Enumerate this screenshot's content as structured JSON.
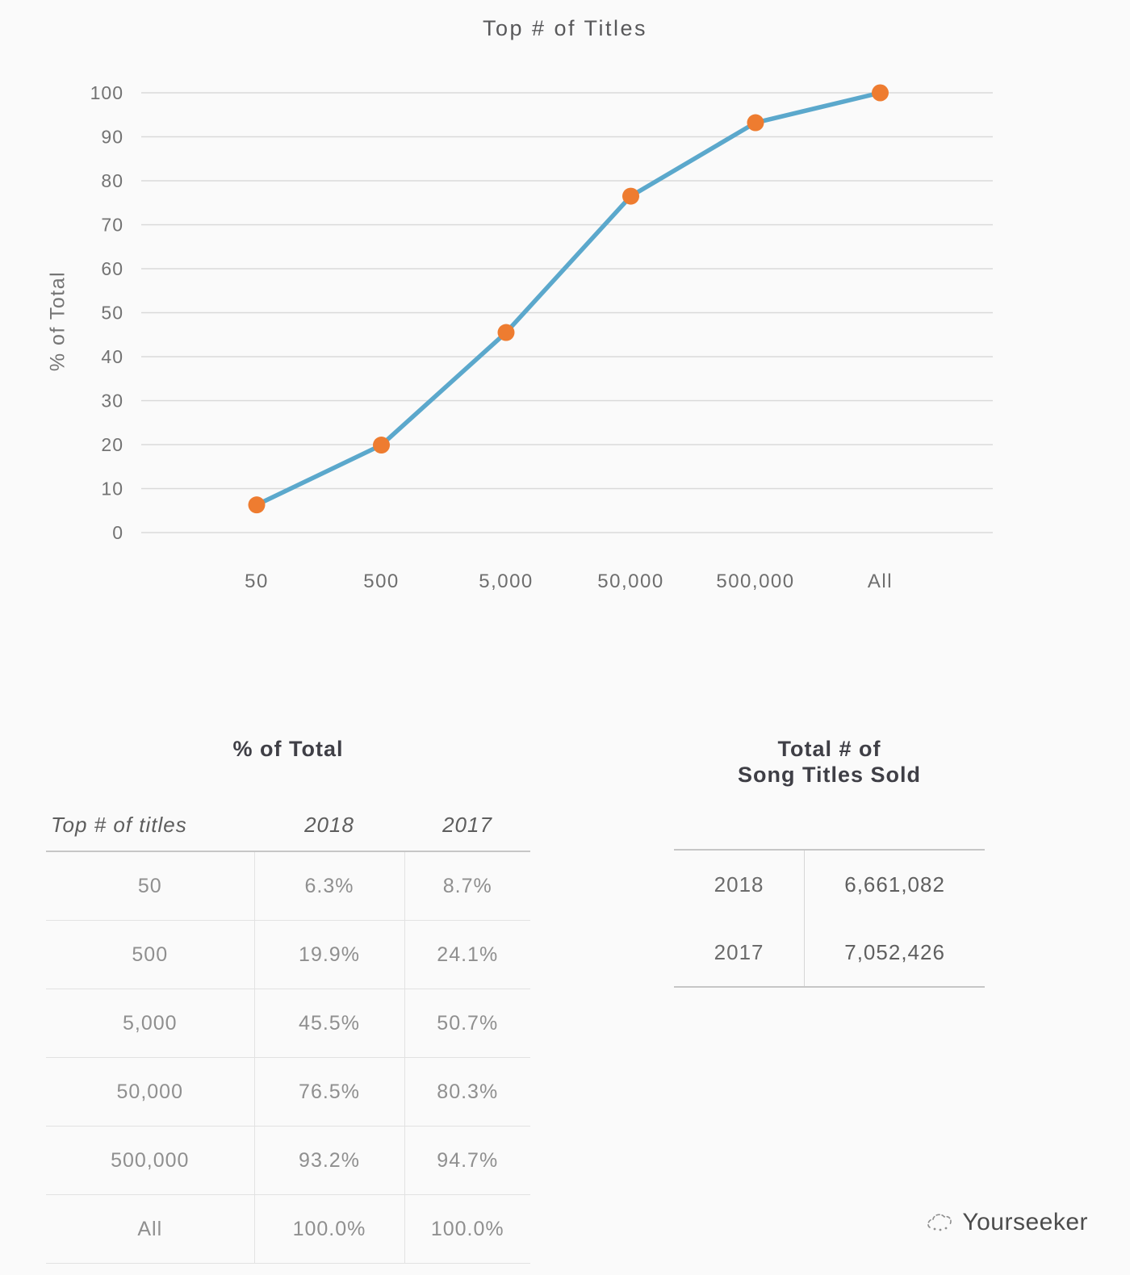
{
  "chart_data": {
    "type": "line",
    "title": "Top # of Titles",
    "ylabel": "% of Total",
    "xlabel": "",
    "categories": [
      "50",
      "500",
      "5,000",
      "50,000",
      "500,000",
      "All"
    ],
    "series": [
      {
        "name": "2018",
        "values": [
          6.3,
          19.9,
          45.5,
          76.5,
          93.2,
          100.0
        ]
      }
    ],
    "ylim": [
      0,
      100
    ],
    "yticks": [
      0,
      10,
      20,
      30,
      40,
      50,
      60,
      70,
      80,
      90,
      100
    ],
    "grid": true,
    "legend": "none",
    "line_color": "#5BA8CC",
    "marker_color": "#EE7C30"
  },
  "left_table": {
    "title": "% of Total",
    "columns": [
      "Top # of titles",
      "2018",
      "2017"
    ],
    "rows": [
      [
        "50",
        "6.3%",
        "8.7%"
      ],
      [
        "500",
        "19.9%",
        "24.1%"
      ],
      [
        "5,000",
        "45.5%",
        "50.7%"
      ],
      [
        "50,000",
        "76.5%",
        "80.3%"
      ],
      [
        "500,000",
        "93.2%",
        "94.7%"
      ],
      [
        "All",
        "100.0%",
        "100.0%"
      ]
    ]
  },
  "right_table": {
    "title_line1": "Total # of",
    "title_line2": "Song Titles Sold",
    "rows": [
      [
        "2018",
        "6,661,082"
      ],
      [
        "2017",
        "7,052,426"
      ]
    ]
  },
  "footer": {
    "brand": "Yourseeker"
  }
}
